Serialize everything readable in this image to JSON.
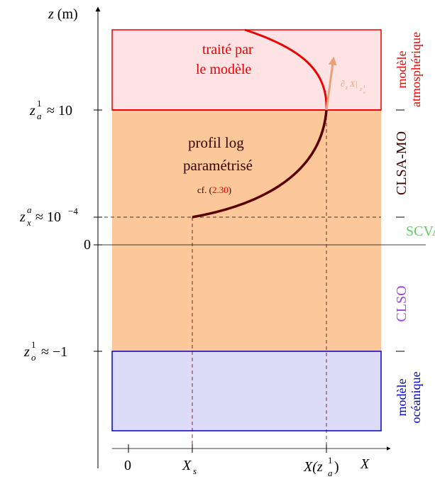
{
  "axes": {
    "z_label": {
      "var": "z",
      "unit": "(m)"
    },
    "z_ticks": [
      {
        "base": "z",
        "sup": "1",
        "sub": "a",
        "rest": "≈ 10"
      },
      {
        "base": "z",
        "sup": "a",
        "sub": "x",
        "rest": "≈ 10",
        "exp": "−4"
      },
      {
        "rest": "0"
      },
      {
        "base": "z",
        "sup": "1",
        "sub": "o",
        "rest": "≈ −1"
      }
    ],
    "x_ticks": [
      {
        "rest": "0"
      },
      {
        "base": "X",
        "sub": "s"
      },
      {
        "base": "X(z",
        "sup": "1",
        "sub": "a",
        "close": ")"
      }
    ],
    "x_label": "X"
  },
  "regions": {
    "atmosphere_note": [
      "traité par",
      "le modèle"
    ],
    "profile_note": [
      "profil log",
      "paramétrisé"
    ],
    "ref": {
      "prefix": "cf. (",
      "num": "2.30",
      "suffix": ")"
    },
    "gradient": {
      "d": "∂",
      "dsub": "z",
      "mid": "X|",
      "zsub": "z",
      "zsup": "1",
      "zsubsub": "a"
    }
  },
  "side_labels": {
    "atmos": [
      "modèle",
      "atmosphérique"
    ],
    "clsa": "CLSA-MO",
    "scva": "SCVA",
    "clso": "CLSO",
    "ocean": [
      "modèle",
      "océanique"
    ]
  }
}
